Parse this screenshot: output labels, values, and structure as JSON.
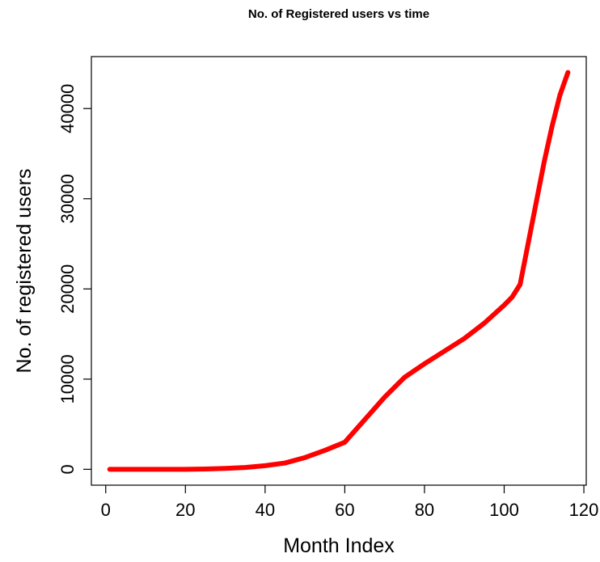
{
  "chart_data": {
    "type": "line",
    "title": "No. of Registered users vs time",
    "x_label": "Month Index",
    "y_label": "No. of registered users",
    "x": [
      1,
      5,
      10,
      15,
      20,
      25,
      30,
      35,
      40,
      45,
      50,
      55,
      60,
      65,
      70,
      75,
      80,
      85,
      90,
      95,
      100,
      102,
      104,
      106,
      108,
      110,
      112,
      114,
      116
    ],
    "series": [
      {
        "name": "Registered users",
        "color": "#ff0000",
        "values": [
          0,
          0,
          0,
          0,
          0,
          30,
          100,
          200,
          400,
          700,
          1300,
          2100,
          3000,
          5500,
          8000,
          10200,
          11700,
          13100,
          14500,
          16200,
          18200,
          19100,
          20500,
          25000,
          29500,
          34000,
          38000,
          41500,
          44000
        ]
      }
    ],
    "xlim": [
      -3.6,
      120.6
    ],
    "xticks": [
      0,
      20,
      40,
      60,
      80,
      100,
      120
    ],
    "ylim": [
      -1760,
      45760
    ],
    "yticks": [
      0,
      10000,
      20000,
      30000,
      40000
    ]
  }
}
